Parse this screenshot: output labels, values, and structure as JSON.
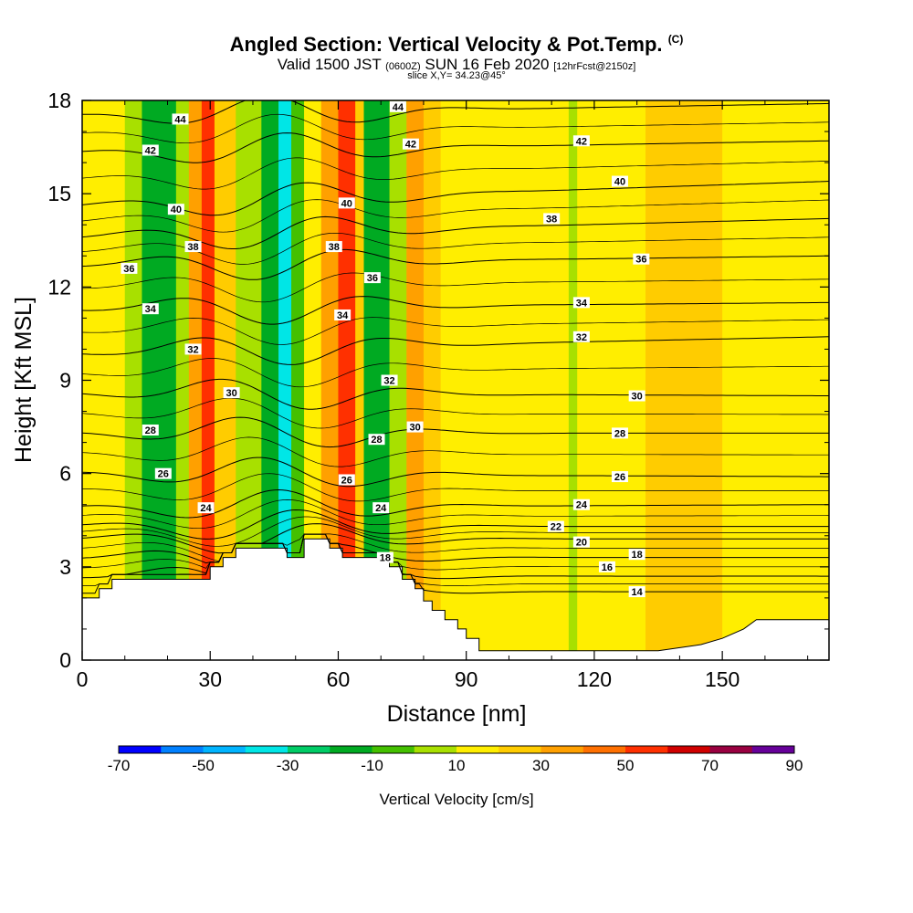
{
  "title_block": {
    "title": "Angled Section: Vertical Velocity & Pot.Temp.",
    "copyright": "(C)",
    "valid_prefix": "Valid 1500 JST",
    "valid_utc": "(0600Z)",
    "valid_date": "SUN 16 Feb 2020",
    "forecast": "[12hrFcst@2150z]",
    "slice": "slice X,Y= 34.23@45°"
  },
  "chart_data": {
    "type": "heatmap",
    "xlabel": "Distance [nm]",
    "ylabel": "Height [Kft MSL]",
    "xlim": [
      0,
      175
    ],
    "ylim": [
      0,
      18
    ],
    "xticks": [
      0,
      30,
      60,
      90,
      120,
      150
    ],
    "yticks": [
      0,
      3,
      6,
      9,
      12,
      15,
      18
    ],
    "colorbar": {
      "label": "Vertical Velocity [cm/s]",
      "ticks": [
        "-70",
        "-50",
        "-30",
        "-10",
        "10",
        "30",
        "50",
        "70",
        "90"
      ],
      "colors": [
        "#0000ff",
        "#0080ff",
        "#00b4ff",
        "#00e6e6",
        "#00cc66",
        "#00aa22",
        "#44c000",
        "#a8e000",
        "#ffee00",
        "#ffcc00",
        "#ffa000",
        "#ff7000",
        "#ff3000",
        "#d00000",
        "#990040",
        "#660099"
      ]
    },
    "velocity_bands": [
      {
        "x": [
          0,
          10
        ],
        "vel": 0
      },
      {
        "x": [
          10,
          14
        ],
        "vel": -10
      },
      {
        "x": [
          14,
          22
        ],
        "vel": -30
      },
      {
        "x": [
          22,
          25
        ],
        "vel": -10
      },
      {
        "x": [
          25,
          28
        ],
        "vel": 20
      },
      {
        "x": [
          28,
          31
        ],
        "vel": 40
      },
      {
        "x": [
          31,
          36
        ],
        "vel": 10
      },
      {
        "x": [
          36,
          42
        ],
        "vel": -10
      },
      {
        "x": [
          42,
          46
        ],
        "vel": -30
      },
      {
        "x": [
          46,
          49
        ],
        "vel": -50
      },
      {
        "x": [
          49,
          52
        ],
        "vel": -20
      },
      {
        "x": [
          52,
          56
        ],
        "vel": 0
      },
      {
        "x": [
          56,
          60
        ],
        "vel": 20
      },
      {
        "x": [
          60,
          64
        ],
        "vel": 40
      },
      {
        "x": [
          64,
          66
        ],
        "vel": 10
      },
      {
        "x": [
          66,
          72
        ],
        "vel": -30
      },
      {
        "x": [
          72,
          76
        ],
        "vel": -10
      },
      {
        "x": [
          76,
          80
        ],
        "vel": 20
      },
      {
        "x": [
          80,
          84
        ],
        "vel": 10
      },
      {
        "x": [
          84,
          104
        ],
        "vel": 0
      },
      {
        "x": [
          104,
          114
        ],
        "vel": 5
      },
      {
        "x": [
          114,
          116
        ],
        "vel": -10
      },
      {
        "x": [
          116,
          132
        ],
        "vel": 5
      },
      {
        "x": [
          132,
          150
        ],
        "vel": 15
      },
      {
        "x": [
          150,
          175
        ],
        "vel": 5
      }
    ],
    "terrain": [
      [
        0,
        2.0
      ],
      [
        4,
        2.0
      ],
      [
        4,
        2.3
      ],
      [
        7,
        2.3
      ],
      [
        7,
        2.6
      ],
      [
        30,
        2.6
      ],
      [
        30,
        3.0
      ],
      [
        33,
        3.0
      ],
      [
        33,
        3.3
      ],
      [
        36,
        3.3
      ],
      [
        36,
        3.6
      ],
      [
        48,
        3.6
      ],
      [
        48,
        3.3
      ],
      [
        52,
        3.3
      ],
      [
        52,
        3.9
      ],
      [
        58,
        3.9
      ],
      [
        58,
        3.6
      ],
      [
        61,
        3.6
      ],
      [
        61,
        3.3
      ],
      [
        72,
        3.3
      ],
      [
        72,
        3.0
      ],
      [
        75,
        3.0
      ],
      [
        75,
        2.6
      ],
      [
        78,
        2.6
      ],
      [
        78,
        2.3
      ],
      [
        80,
        2.3
      ],
      [
        80,
        1.9
      ],
      [
        82,
        1.9
      ],
      [
        82,
        1.6
      ],
      [
        85,
        1.6
      ],
      [
        85,
        1.3
      ],
      [
        88,
        1.3
      ],
      [
        88,
        1.0
      ],
      [
        90,
        1.0
      ],
      [
        90,
        0.7
      ],
      [
        93,
        0.7
      ],
      [
        93,
        0.3
      ],
      [
        120,
        0.3
      ],
      [
        135,
        0.3
      ],
      [
        145,
        0.5
      ],
      [
        150,
        0.7
      ],
      [
        155,
        1.0
      ],
      [
        158,
        1.3
      ],
      [
        175,
        1.3
      ]
    ],
    "isentropes": [
      {
        "theta": 14,
        "y_left": 2.2,
        "y_right": 2.2
      },
      {
        "theta": 16,
        "y_left": 2.7,
        "y_right": 2.7
      },
      {
        "theta": 18,
        "y_left": 3.3,
        "y_right": 3.3
      },
      {
        "theta": 20,
        "y_left": 3.9,
        "y_right": 3.9
      },
      {
        "theta": 22,
        "y_left": 4.3,
        "y_right": 4.3
      },
      {
        "theta": 24,
        "y_left": 4.9,
        "y_right": 5.0
      },
      {
        "theta": 26,
        "y_left": 6.0,
        "y_right": 5.9
      },
      {
        "theta": 28,
        "y_left": 7.3,
        "y_right": 7.3
      },
      {
        "theta": 30,
        "y_left": 8.6,
        "y_right": 8.5
      },
      {
        "theta": 32,
        "y_left": 9.9,
        "y_right": 10.4
      },
      {
        "theta": 34,
        "y_left": 11.3,
        "y_right": 11.5
      },
      {
        "theta": 36,
        "y_left": 12.7,
        "y_right": 13.0
      },
      {
        "theta": 38,
        "y_left": 13.6,
        "y_right": 14.2
      },
      {
        "theta": 40,
        "y_left": 14.6,
        "y_right": 15.4
      },
      {
        "theta": 42,
        "y_left": 16.3,
        "y_right": 16.7
      },
      {
        "theta": 44,
        "y_left": 17.5,
        "y_right": 17.9
      }
    ],
    "contour_labels": [
      {
        "text": "44",
        "x": 23,
        "y": 17.4
      },
      {
        "text": "42",
        "x": 16,
        "y": 16.4
      },
      {
        "text": "40",
        "x": 22,
        "y": 14.5
      },
      {
        "text": "38",
        "x": 26,
        "y": 13.3
      },
      {
        "text": "36",
        "x": 11,
        "y": 12.6
      },
      {
        "text": "34",
        "x": 16,
        "y": 11.3
      },
      {
        "text": "32",
        "x": 26,
        "y": 10.0
      },
      {
        "text": "30",
        "x": 35,
        "y": 8.6
      },
      {
        "text": "28",
        "x": 16,
        "y": 7.4
      },
      {
        "text": "26",
        "x": 19,
        "y": 6.0
      },
      {
        "text": "24",
        "x": 29,
        "y": 4.9
      },
      {
        "text": "44",
        "x": 74,
        "y": 17.8
      },
      {
        "text": "42",
        "x": 77,
        "y": 16.6
      },
      {
        "text": "40",
        "x": 62,
        "y": 14.7
      },
      {
        "text": "38",
        "x": 59,
        "y": 13.3
      },
      {
        "text": "36",
        "x": 68,
        "y": 12.3
      },
      {
        "text": "34",
        "x": 61,
        "y": 11.1
      },
      {
        "text": "32",
        "x": 72,
        "y": 9.0
      },
      {
        "text": "30",
        "x": 78,
        "y": 7.5
      },
      {
        "text": "28",
        "x": 69,
        "y": 7.1
      },
      {
        "text": "26",
        "x": 62,
        "y": 5.8
      },
      {
        "text": "24",
        "x": 70,
        "y": 4.9
      },
      {
        "text": "18",
        "x": 71,
        "y": 3.3
      },
      {
        "text": "42",
        "x": 117,
        "y": 16.7
      },
      {
        "text": "40",
        "x": 126,
        "y": 15.4
      },
      {
        "text": "38",
        "x": 110,
        "y": 14.2
      },
      {
        "text": "36",
        "x": 131,
        "y": 12.9
      },
      {
        "text": "34",
        "x": 117,
        "y": 11.5
      },
      {
        "text": "32",
        "x": 117,
        "y": 10.4
      },
      {
        "text": "30",
        "x": 130,
        "y": 8.5
      },
      {
        "text": "28",
        "x": 126,
        "y": 7.3
      },
      {
        "text": "26",
        "x": 126,
        "y": 5.9
      },
      {
        "text": "24",
        "x": 117,
        "y": 5.0
      },
      {
        "text": "22",
        "x": 111,
        "y": 4.3
      },
      {
        "text": "20",
        "x": 117,
        "y": 3.8
      },
      {
        "text": "18",
        "x": 130,
        "y": 3.4
      },
      {
        "text": "16",
        "x": 123,
        "y": 3.0
      },
      {
        "text": "14",
        "x": 130,
        "y": 2.2
      }
    ]
  }
}
